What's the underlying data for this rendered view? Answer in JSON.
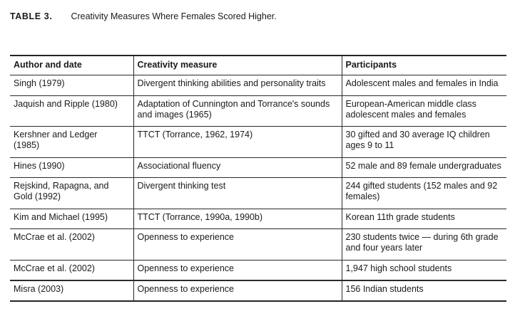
{
  "caption": {
    "label": "TABLE 3.",
    "title": "Creativity Measures Where Females Scored Higher."
  },
  "table": {
    "headers": {
      "author": "Author and date",
      "measure": "Creativity measure",
      "participants": "Participants"
    },
    "rows": [
      {
        "author": "Singh (1979)",
        "measure": "Divergent thinking abilities and personality traits",
        "participants": "Adolescent males and females in India"
      },
      {
        "author": "Jaquish and Ripple (1980)",
        "measure": "Adaptation of Cunnington and Torrance's sounds and images (1965)",
        "participants": "European-American middle class adolescent males and females"
      },
      {
        "author": "Kershner and Ledger\n(1985)",
        "measure": "TTCT (Torrance, 1962, 1974)",
        "participants": "30 gifted and 30 average IQ children ages 9 to 11"
      },
      {
        "author": "Hines (1990)",
        "measure": "Associational fluency",
        "participants": "52 male and 89 female undergraduates"
      },
      {
        "author": "Rejskind, Rapagna, and\nGold (1992)",
        "measure": "Divergent thinking test",
        "participants": "244 gifted students (152 males and 92 females)"
      },
      {
        "author": "Kim and Michael (1995)",
        "measure": "TTCT (Torrance, 1990a, 1990b)",
        "participants": "Korean 11th grade students"
      },
      {
        "author": "McCrae et al.  (2002)",
        "measure": "Openness to experience",
        "participants": "230 students twice — during 6th grade and four years later"
      },
      {
        "author": "McCrae et al. (2002)",
        "measure": "Openness to experience",
        "participants": "1,947 high school students"
      },
      {
        "author": "Misra (2003)",
        "measure": "Openness to experience",
        "participants": "156 Indian students"
      }
    ]
  },
  "colors": {
    "text": "#1a1a1a",
    "rule": "#242424",
    "background": "#ffffff"
  }
}
